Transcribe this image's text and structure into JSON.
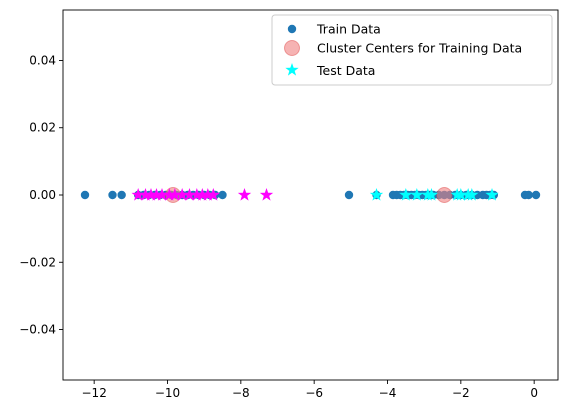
{
  "chart_data": {
    "type": "scatter",
    "title": "",
    "xlabel": "",
    "ylabel": "",
    "xlim": [
      -12.85,
      0.65
    ],
    "ylim": [
      -0.055,
      0.055
    ],
    "xticks": [
      -12,
      -10,
      -8,
      -6,
      -4,
      -2,
      0
    ],
    "xtick_labels": [
      "−12",
      "−10",
      "−8",
      "−6",
      "−4",
      "−2",
      "0"
    ],
    "yticks": [
      -0.04,
      -0.02,
      0.0,
      0.02,
      0.04
    ],
    "ytick_labels": [
      "−0.04",
      "−0.02",
      "0.00",
      "0.02",
      "0.04"
    ],
    "grid": false,
    "legend_position": "top-right",
    "series": [
      {
        "name": "Train Data",
        "marker": "circle",
        "color": "#1f77b4",
        "x": [
          -12.25,
          -11.5,
          -11.25,
          -10.8,
          -10.65,
          -10.5,
          -10.35,
          -10.2,
          -10.05,
          -9.9,
          -9.75,
          -9.6,
          -9.45,
          -9.3,
          -9.15,
          -9.0,
          -8.85,
          -8.7,
          -8.5,
          -5.05,
          -4.3,
          -3.85,
          -3.75,
          -3.65,
          -3.55,
          -3.45,
          -3.35,
          -3.25,
          -3.15,
          -3.05,
          -2.95,
          -2.85,
          -2.75,
          -2.6,
          -2.45,
          -2.3,
          -2.15,
          -2.0,
          -1.85,
          -1.7,
          -1.55,
          -1.4,
          -1.3,
          -1.2,
          -1.1,
          -0.25,
          -0.15,
          0.05
        ],
        "y": [
          0,
          0,
          0,
          0,
          0,
          0,
          0,
          0,
          0,
          0,
          0,
          0,
          0,
          0,
          0,
          0,
          0,
          0,
          0,
          0,
          0,
          0,
          0,
          0,
          0,
          0,
          0,
          0,
          0,
          0,
          0,
          0,
          0,
          0,
          0,
          0,
          0,
          0,
          0,
          0,
          0,
          0,
          0,
          0,
          0,
          0,
          0,
          0
        ]
      },
      {
        "name": "Cluster Centers for Training Data",
        "marker": "big-circle",
        "color": "#f08080",
        "x": [
          -9.85,
          -2.45
        ],
        "y": [
          0,
          0
        ]
      },
      {
        "name": "Test Data",
        "marker": "star",
        "color": "#00ffff",
        "x": [
          -4.3,
          -3.5,
          -3.2,
          -2.9,
          -2.8,
          -2.1,
          -2.0,
          -1.8,
          -1.7,
          -1.15
        ],
        "y": [
          0,
          0,
          0,
          0,
          0,
          0,
          0,
          0,
          0,
          0
        ]
      },
      {
        "name": "",
        "marker": "star",
        "color": "#ff00ff",
        "x": [
          -10.8,
          -10.6,
          -10.45,
          -10.3,
          -10.15,
          -9.95,
          -9.8,
          -9.6,
          -9.4,
          -9.2,
          -9.05,
          -8.9,
          -8.75,
          -7.9,
          -7.3
        ],
        "y": [
          0,
          0,
          0,
          0,
          0,
          0,
          0,
          0,
          0,
          0,
          0,
          0,
          0,
          0,
          0
        ]
      }
    ]
  }
}
